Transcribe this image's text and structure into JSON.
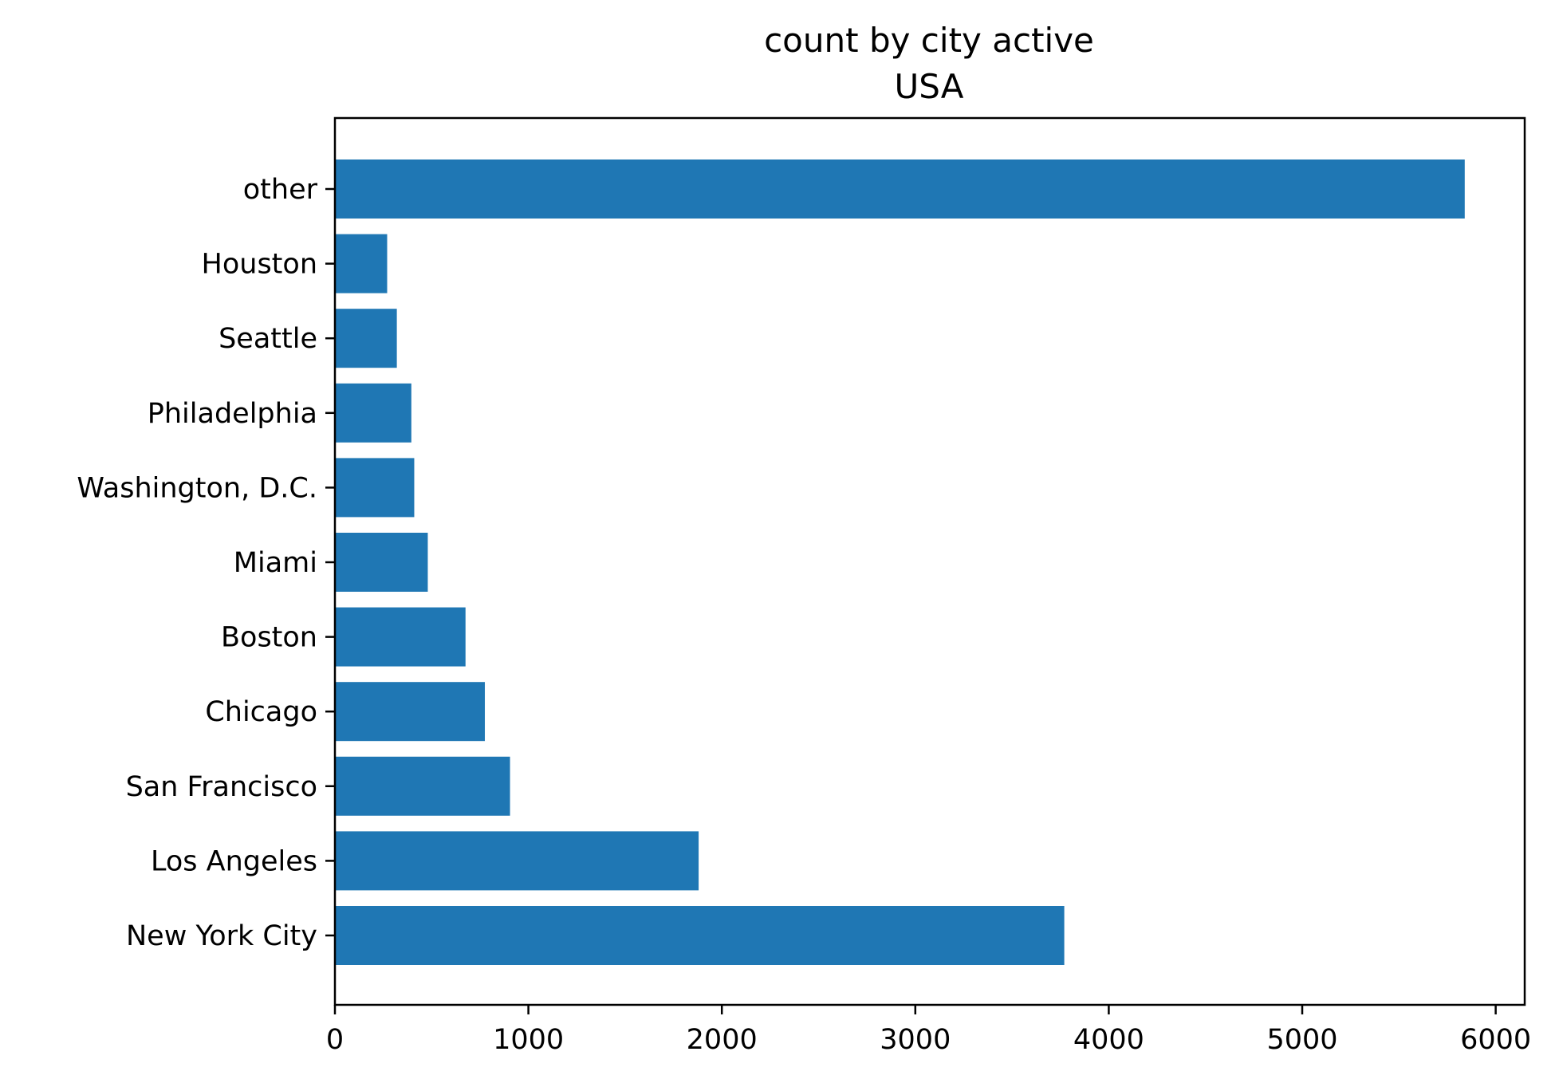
{
  "chart_data": {
    "type": "bar",
    "orientation": "horizontal",
    "title": "count by city active",
    "subtitle": "USA",
    "xlabel": "",
    "ylabel": "",
    "categories": [
      "New York City",
      "Los Angeles",
      "San Francisco",
      "Chicago",
      "Boston",
      "Miami",
      "Washington, D.C.",
      "Philadelphia",
      "Seattle",
      "Houston",
      "other"
    ],
    "values": [
      3770,
      1880,
      905,
      775,
      675,
      480,
      410,
      395,
      320,
      270,
      5840
    ],
    "xlim": [
      0,
      6150
    ],
    "xticks": [
      0,
      1000,
      2000,
      3000,
      4000,
      5000,
      6000
    ],
    "xtick_labels": [
      "0",
      "1000",
      "2000",
      "3000",
      "4000",
      "5000",
      "6000"
    ],
    "grid": false,
    "bar_color": "#1f77b4"
  }
}
